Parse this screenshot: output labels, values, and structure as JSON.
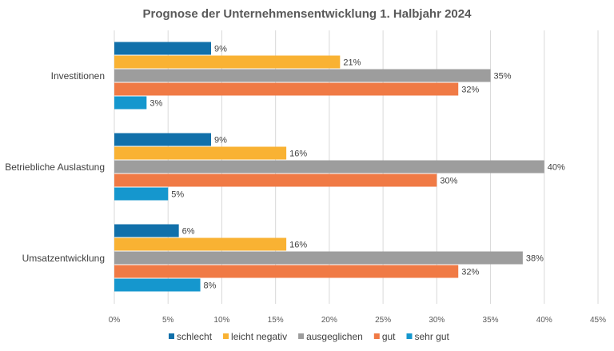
{
  "chart_data": {
    "type": "bar",
    "orientation": "horizontal",
    "title": "Prognose der Unternehmensentwicklung 1. Halbjahr 2024",
    "categories": [
      "Investitionen",
      "Betriebliche Auslastung",
      "Umsatzentwicklung"
    ],
    "series": [
      {
        "name": "schlecht",
        "color": "#1170AA",
        "values": [
          9,
          9,
          6
        ]
      },
      {
        "name": "leicht negativ",
        "color": "#F9B233",
        "values": [
          21,
          16,
          16
        ]
      },
      {
        "name": "ausgeglichen",
        "color": "#9D9D9D",
        "values": [
          35,
          40,
          38
        ]
      },
      {
        "name": "gut",
        "color": "#F07A45",
        "values": [
          32,
          30,
          32
        ]
      },
      {
        "name": "sehr gut",
        "color": "#1597CE",
        "values": [
          3,
          5,
          8
        ]
      }
    ],
    "xlim": [
      0,
      45
    ],
    "xticks": [
      "0%",
      "5%",
      "10%",
      "15%",
      "20%",
      "25%",
      "30%",
      "35%",
      "40%",
      "45%"
    ],
    "value_suffix": "%",
    "grid": true,
    "legend": "bottom"
  }
}
